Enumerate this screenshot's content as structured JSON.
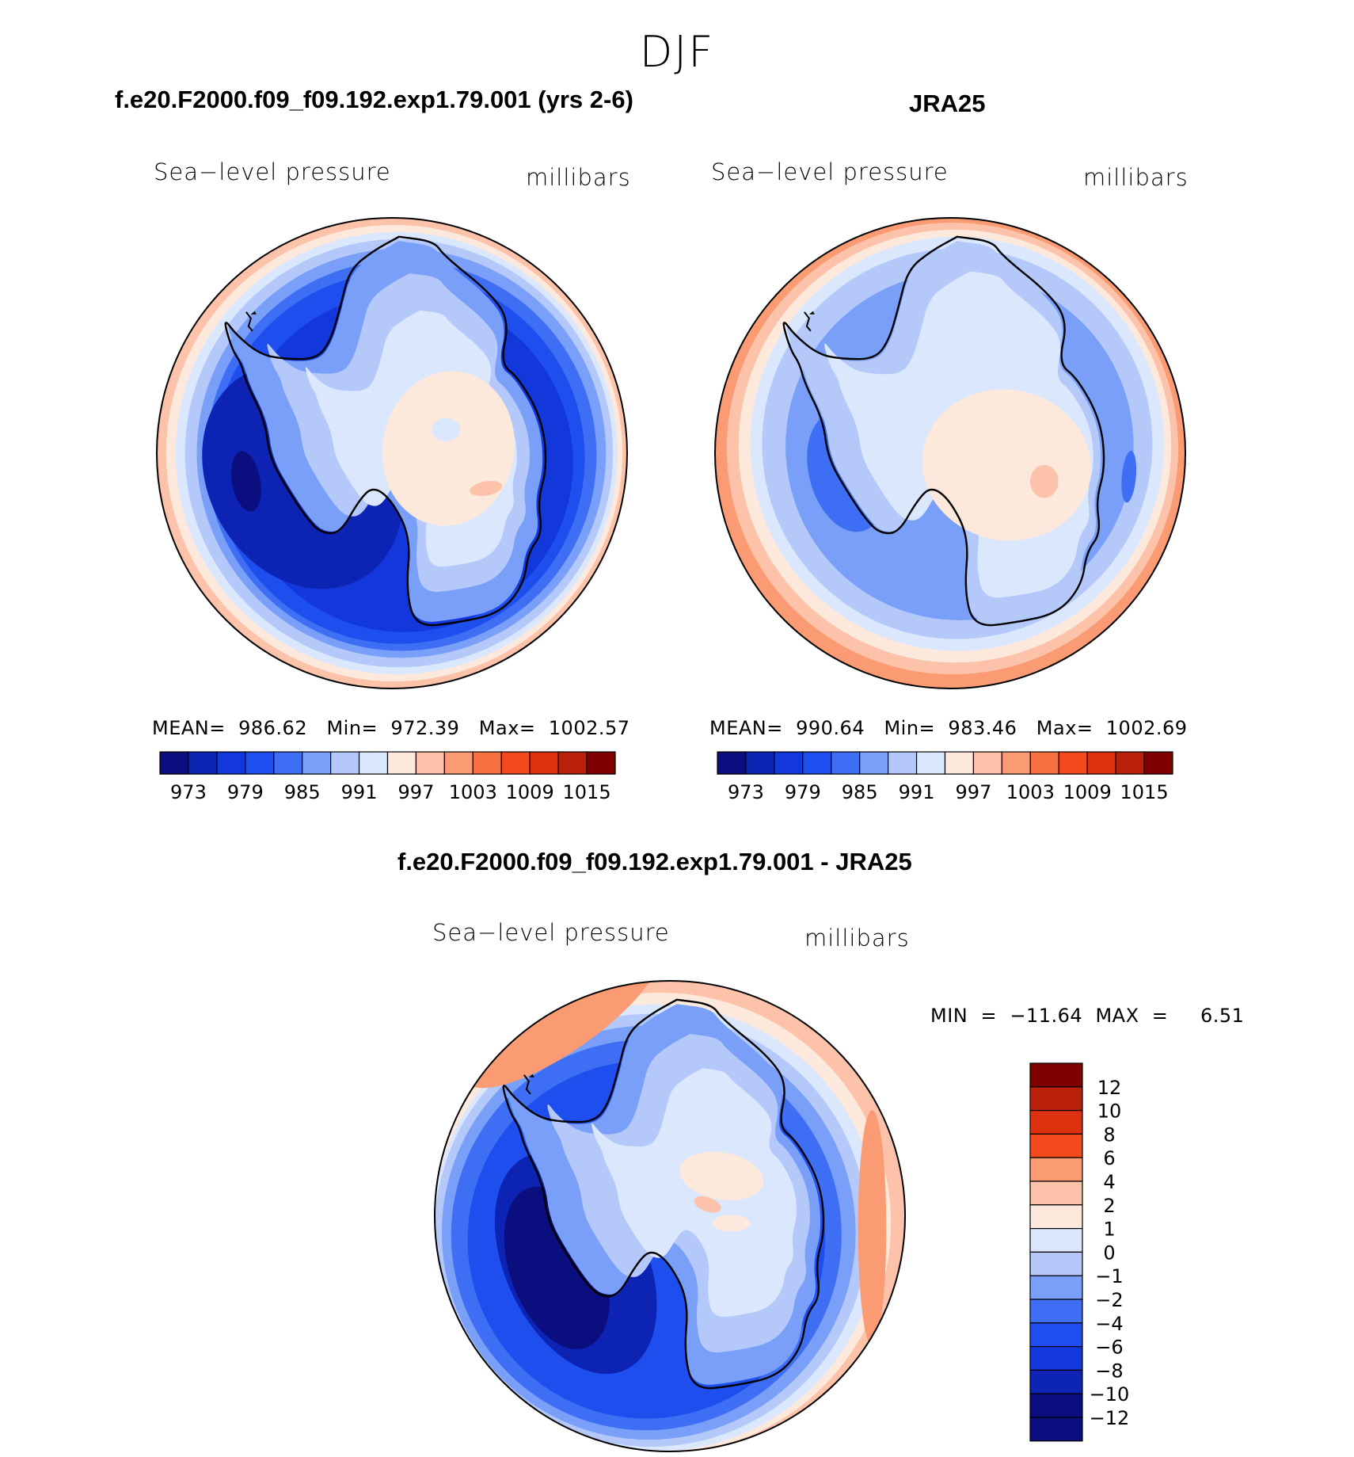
{
  "header": {
    "season": "DJF"
  },
  "panels": [
    {
      "title": "f.e20.F2000.f09_f09.192.exp1.79.001 (yrs 2-6)",
      "variable_label": "Sea−level pressure",
      "units_label": "millibars",
      "stats": "MEAN=  986.62   Min=  972.39   Max=  1002.57"
    },
    {
      "title": "JRA25",
      "variable_label": "Sea−level pressure",
      "units_label": "millibars",
      "stats": "MEAN=  990.64   Min=  983.46   Max=  1002.69"
    },
    {
      "title": "f.e20.F2000.f09_f09.192.exp1.79.001 - JRA25",
      "variable_label": "Sea−level pressure",
      "units_label": "millibars",
      "stats": "MIN  =  −11.64  MAX  =     6.51"
    }
  ],
  "colors": {
    "levels16": [
      "#0a0e7e",
      "#0c23b4",
      "#1238dc",
      "#1e4eee",
      "#3d6ef3",
      "#7a9ff8",
      "#b4c9fa",
      "#dbe7fd",
      "#fde8dc",
      "#fcc3aa",
      "#fb9b74",
      "#f7703f",
      "#f24a1d",
      "#de3110",
      "#b8200a",
      "#800000"
    ],
    "diff_levels": [
      "#0a0e7e",
      "#0c23b4",
      "#1238dc",
      "#1e4eee",
      "#3d6ef3",
      "#7a9ff8",
      "#b4c9fa",
      "#dbe7fd",
      "#fde8dc",
      "#fcc3aa",
      "#fb9b74",
      "#f24a1d",
      "#de3110",
      "#b8200a",
      "#800000"
    ],
    "land_outline": "#000000"
  },
  "chart_data": [
    {
      "type": "heatmap",
      "title": "f.e20.F2000.f09_f09.192.exp1.79.001 (yrs 2-6)",
      "subtitle": "Sea−level pressure",
      "units": "millibars",
      "projection": "south polar stereographic",
      "colorbar_ticks": [
        "973",
        "979",
        "985",
        "991",
        "997",
        "1003",
        "1009",
        "1015"
      ],
      "stats": {
        "mean": 986.62,
        "min": 972.39,
        "max": 1002.57
      }
    },
    {
      "type": "heatmap",
      "title": "JRA25",
      "subtitle": "Sea−level pressure",
      "units": "millibars",
      "projection": "south polar stereographic",
      "colorbar_ticks": [
        "973",
        "979",
        "985",
        "991",
        "997",
        "1003",
        "1009",
        "1015"
      ],
      "stats": {
        "mean": 990.64,
        "min": 983.46,
        "max": 1002.69
      }
    },
    {
      "type": "heatmap",
      "title": "f.e20.F2000.f09_f09.192.exp1.79.001 - JRA25",
      "subtitle": "Sea−level pressure",
      "units": "millibars",
      "projection": "south polar stereographic",
      "colorbar_ticks": [
        "12",
        "10",
        "8",
        "6",
        "4",
        "2",
        "1",
        "0",
        "−1",
        "−2",
        "−4",
        "−6",
        "−8",
        "−10",
        "−12"
      ],
      "stats": {
        "min": -11.64,
        "max": 6.51
      }
    }
  ]
}
